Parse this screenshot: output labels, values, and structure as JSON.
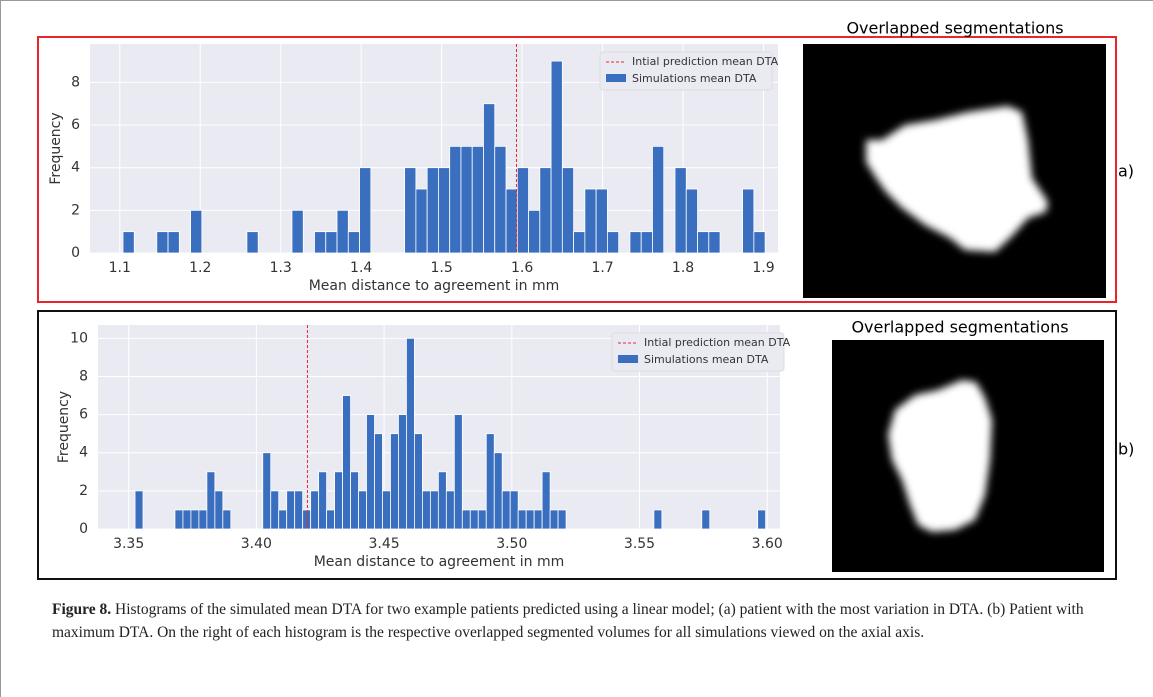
{
  "chart_data": [
    {
      "type": "histogram",
      "xlabel": "Mean distance to agreement in mm",
      "ylabel": "Frequency",
      "grid": true,
      "bins": [
        1.104,
        1.118,
        1.132,
        1.146,
        1.16,
        1.174,
        1.188,
        1.202,
        1.216,
        1.23,
        1.244,
        1.258,
        1.272,
        1.286,
        1.3,
        1.314,
        1.328,
        1.342,
        1.356,
        1.37,
        1.384,
        1.398,
        1.412,
        1.426,
        1.44,
        1.454,
        1.468,
        1.482,
        1.496,
        1.51,
        1.524,
        1.538,
        1.552,
        1.566,
        1.58,
        1.594,
        1.608,
        1.622,
        1.636,
        1.65,
        1.664,
        1.678,
        1.692,
        1.706,
        1.72,
        1.734,
        1.748,
        1.762,
        1.776,
        1.79,
        1.804,
        1.818,
        1.832,
        1.846,
        1.86,
        1.874,
        1.888,
        1.902
      ],
      "series": [
        {
          "name": "Simulations mean DTA",
          "color": "#3a6fbf",
          "values": [
            1,
            0,
            0,
            1,
            1,
            0,
            2,
            0,
            0,
            0,
            0,
            1,
            0,
            0,
            0,
            2,
            0,
            1,
            1,
            2,
            1,
            4,
            0,
            0,
            0,
            4,
            3,
            4,
            4,
            5,
            5,
            5,
            7,
            5,
            3,
            4,
            2,
            4,
            9,
            4,
            1,
            3,
            3,
            1,
            0,
            1,
            1,
            5,
            0,
            4,
            3,
            1,
            1,
            0,
            0,
            3,
            1
          ]
        }
      ],
      "vline": {
        "name": "Intial prediction mean DTA",
        "x": 1.593,
        "color": "#e8262a"
      },
      "xlim": [
        1.063,
        1.918
      ],
      "xticks": [
        1.1,
        1.2,
        1.3,
        1.4,
        1.5,
        1.6,
        1.7,
        1.8,
        1.9
      ],
      "ylim": [
        0,
        9.8
      ],
      "yticks": [
        0,
        2,
        4,
        6,
        8
      ]
    },
    {
      "type": "histogram",
      "xlabel": "Mean distance to agreement in mm",
      "ylabel": "Frequency",
      "grid": true,
      "bins": [
        3.3525,
        3.355625,
        3.35875,
        3.361875,
        3.365,
        3.368125,
        3.37125,
        3.374375,
        3.3775,
        3.380625,
        3.38375,
        3.386875,
        3.39,
        3.393125,
        3.39625,
        3.399375,
        3.4025,
        3.405625,
        3.40875,
        3.411875,
        3.415,
        3.418125,
        3.42125,
        3.424375,
        3.4275,
        3.430625,
        3.43375,
        3.436875,
        3.44,
        3.443125,
        3.44625,
        3.449375,
        3.4525,
        3.455625,
        3.45875,
        3.461875,
        3.465,
        3.468125,
        3.47125,
        3.474375,
        3.4775,
        3.480625,
        3.48375,
        3.486875,
        3.49,
        3.493125,
        3.49625,
        3.499375,
        3.5025,
        3.505625,
        3.50875,
        3.511875,
        3.515,
        3.518125,
        3.52125,
        3.524375,
        3.5275,
        3.530625,
        3.53375,
        3.536875,
        3.54,
        3.543125,
        3.54625,
        3.549375,
        3.5525,
        3.555625,
        3.55875,
        3.561875,
        3.565,
        3.568125,
        3.57125,
        3.574375,
        3.5775,
        3.580625,
        3.58375,
        3.586875,
        3.59,
        3.593125,
        3.59625,
        3.599375,
        3.6025
      ],
      "series": [
        {
          "name": "Simulations mean DTA",
          "color": "#3a6fbf",
          "values": [
            2,
            0,
            0,
            0,
            0,
            1,
            1,
            1,
            1,
            3,
            2,
            1,
            0,
            0,
            0,
            0,
            4,
            2,
            1,
            2,
            2,
            1,
            2,
            3,
            1,
            3,
            7,
            3,
            2,
            6,
            5,
            2,
            5,
            6,
            10,
            5,
            2,
            2,
            3,
            2,
            6,
            1,
            1,
            1,
            5,
            4,
            2,
            2,
            1,
            1,
            1,
            3,
            1,
            1,
            0,
            0,
            0,
            0,
            0,
            0,
            0,
            0,
            0,
            0,
            0,
            1,
            0,
            0,
            0,
            0,
            0,
            1,
            0,
            0,
            0,
            0,
            0,
            0,
            1,
            0
          ]
        }
      ],
      "vline": {
        "name": "Intial prediction mean DTA",
        "x": 3.42,
        "color": "#e8262a"
      },
      "xlim": [
        3.338,
        3.605
      ],
      "xticks": [
        3.35,
        {
          "value": 3.4,
          "label": "3.40"
        },
        3.45,
        {
          "value": 3.5,
          "label": "3.50"
        },
        3.55,
        {
          "value": 3.6,
          "label": "3.60"
        }
      ],
      "ylim": [
        0,
        10.7
      ],
      "yticks": [
        0,
        2,
        4,
        6,
        8,
        10
      ]
    }
  ],
  "images": [
    {
      "title": "Overlapped segmentations",
      "label": "a)"
    },
    {
      "title": "Overlapped segmentations",
      "label": "b)"
    }
  ],
  "caption": {
    "label": "Figure 8.",
    "text": " Histograms of the simulated mean DTA for two example patients predicted using a linear model; (a) patient with the most variation in DTA. (b) Patient with maximum DTA. On the right of each histogram is the respective overlapped segmented volumes for all simulations viewed on the axial axis."
  }
}
